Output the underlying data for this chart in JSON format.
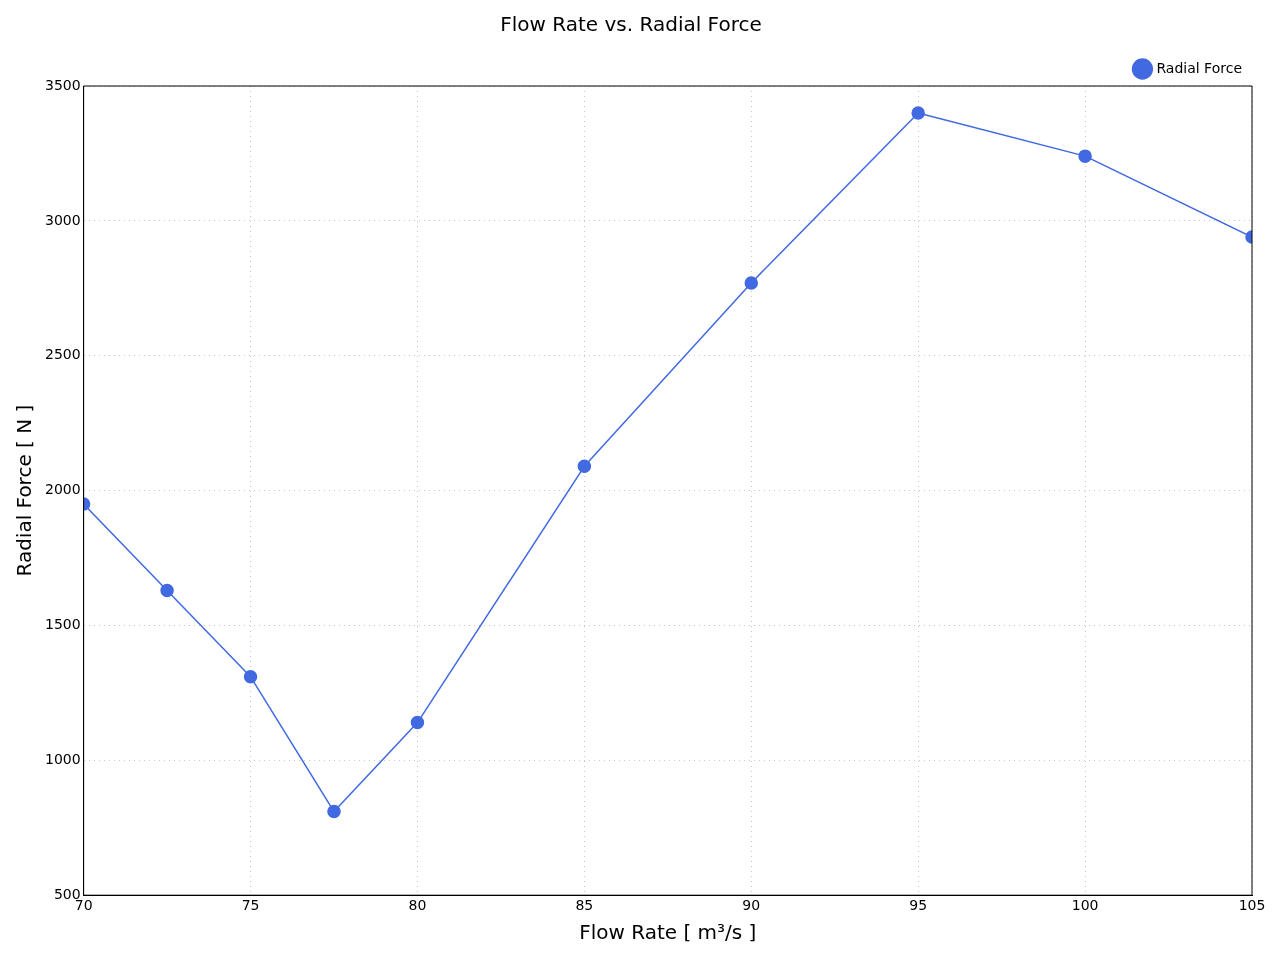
{
  "chart_data": {
    "type": "line",
    "title": "Flow Rate vs. Radial Force",
    "xlabel": "Flow Rate [ m³/s ]",
    "ylabel": "Radial Force [ N ]",
    "x": [
      70,
      72.5,
      75,
      77.5,
      80,
      85,
      90,
      95,
      100,
      105
    ],
    "series": [
      {
        "name": "Radial Force",
        "color": "#4169e1",
        "values": [
          1950,
          1630,
          1310,
          810,
          1140,
          2090,
          2770,
          3400,
          3240,
          2940
        ]
      }
    ],
    "xlim": [
      70,
      105
    ],
    "xticks": [
      70,
      75,
      80,
      85,
      90,
      95,
      100,
      105
    ],
    "ylim": [
      500,
      3500
    ],
    "yticks": [
      500,
      1000,
      1500,
      2000,
      2500,
      3000,
      3500
    ],
    "grid": true,
    "legend": "top right",
    "marker": "circle",
    "line_style": "solid"
  }
}
